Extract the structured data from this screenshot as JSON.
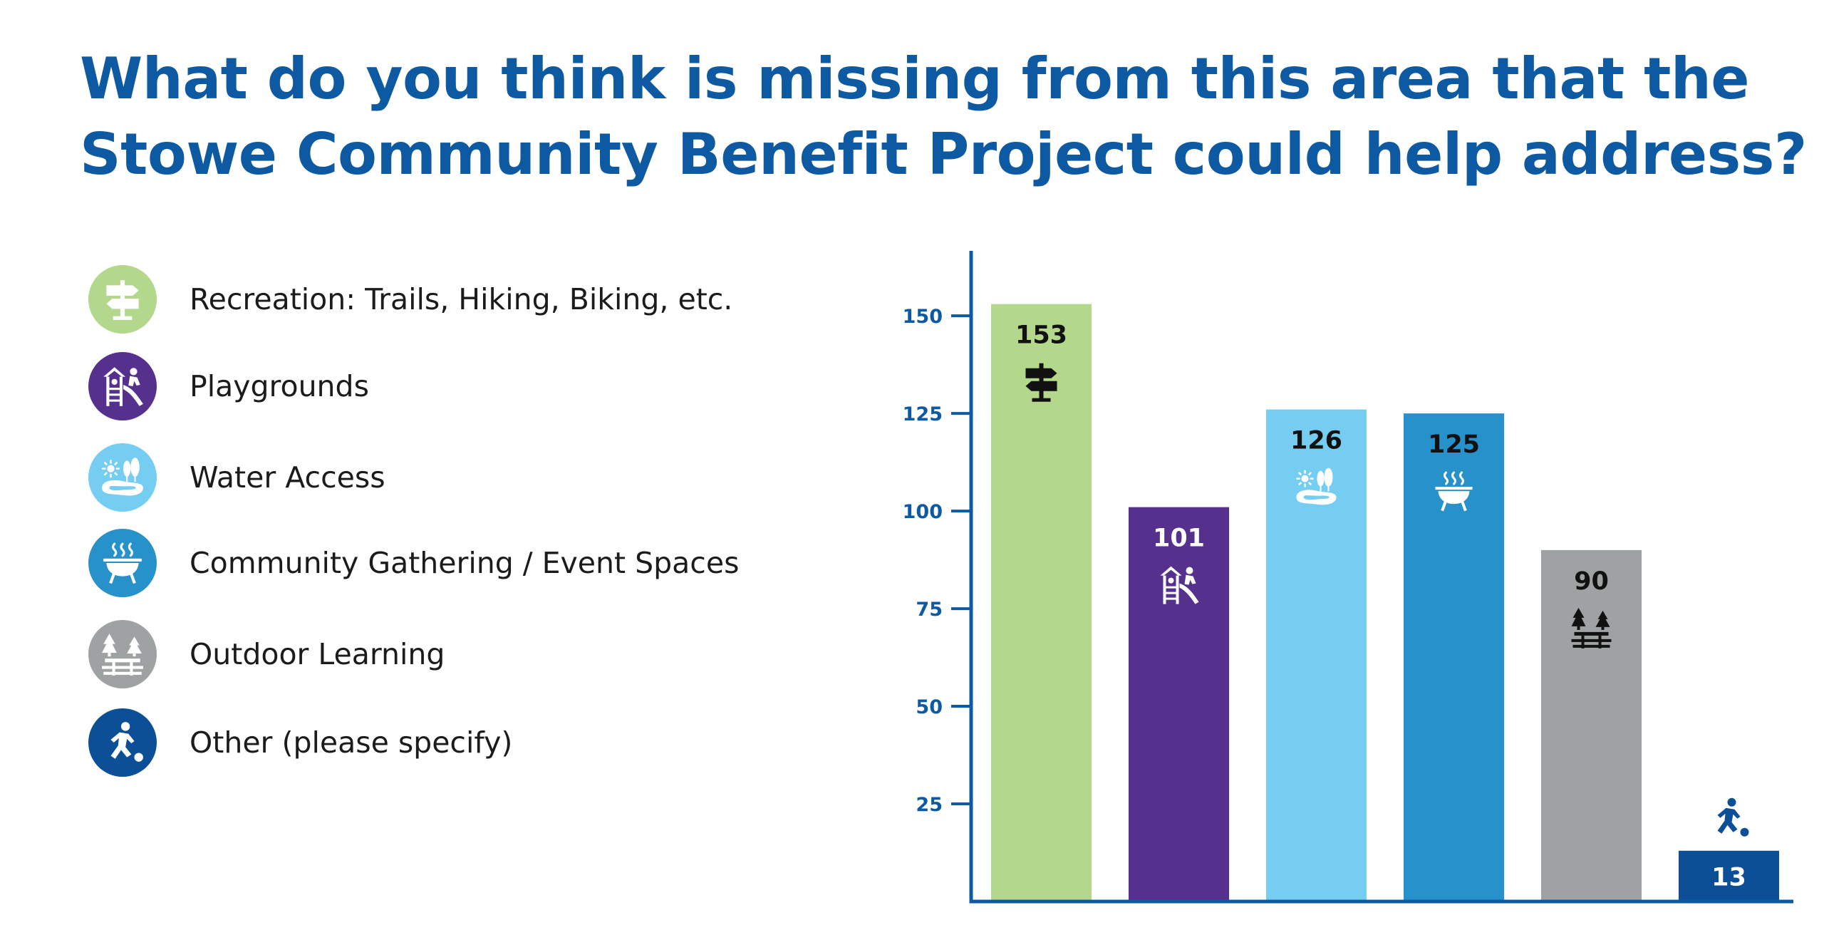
{
  "title": {
    "line1": "What do you think is missing from this area that the",
    "line2": "Stowe Community Benefit Project could help address?"
  },
  "legend": [
    {
      "label": "Recreation: Trails, Hiking, Biking, etc.",
      "color": "#b3d78b",
      "icon": "signpost-icon"
    },
    {
      "label": "Playgrounds",
      "color": "#55308d",
      "icon": "playground-icon"
    },
    {
      "label": "Water Access",
      "color": "#75cdf2",
      "icon": "lake-icon"
    },
    {
      "label": "Community Gathering / Event Spaces",
      "color": "#2791c9",
      "icon": "grill-icon"
    },
    {
      "label": "Outdoor Learning",
      "color": "#9fa2a3",
      "icon": "picnic-table-icon"
    },
    {
      "label": "Other (please specify)",
      "color": "#0c4f96",
      "icon": "soccer-player-icon"
    }
  ],
  "chart_data": {
    "type": "bar",
    "categories": [
      "Recreation: Trails, Hiking, Biking, etc.",
      "Playgrounds",
      "Water Access",
      "Community Gathering / Event Spaces",
      "Outdoor Learning",
      "Other (please specify)"
    ],
    "values": [
      153,
      101,
      126,
      125,
      90,
      13
    ],
    "value_labels": [
      "153",
      "101",
      "126",
      "125",
      "90",
      "13"
    ],
    "colors": [
      "#b3d78b",
      "#55308d",
      "#75cdf2",
      "#2791c9",
      "#9fa2a3",
      "#0c4f96"
    ],
    "label_colors": [
      "#111111",
      "#ffffff",
      "#111111",
      "#111111",
      "#111111",
      "#ffffff"
    ],
    "icon_colors": [
      "#111111",
      "#ffffff",
      "#ffffff",
      "#ffffff",
      "#111111",
      "#0c4f96"
    ],
    "icons": [
      "signpost-icon",
      "playground-icon",
      "lake-icon",
      "grill-icon",
      "picnic-table-icon",
      "soccer-player-icon"
    ],
    "yticks": [
      25,
      50,
      75,
      100,
      125,
      150
    ],
    "ytick_labels": [
      "25",
      "50",
      "75",
      "100",
      "125",
      "150"
    ],
    "ylim": [
      0,
      167
    ],
    "axis_color": "#0e5aa2",
    "grid": false,
    "legend_position": "left"
  }
}
